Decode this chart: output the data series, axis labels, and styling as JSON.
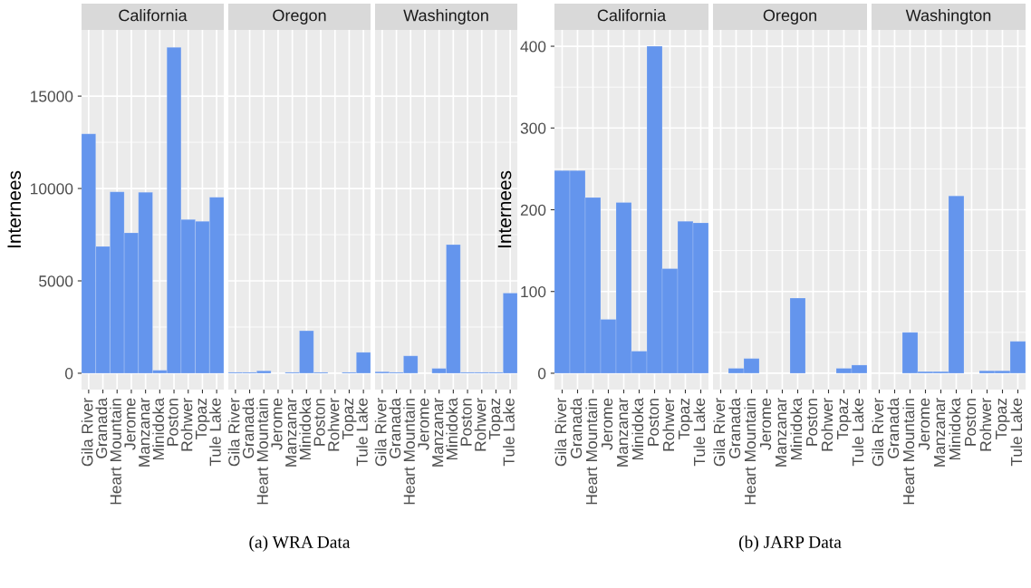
{
  "chart_data": [
    {
      "type": "bar",
      "title": "California",
      "ylabel": "Internees",
      "categories": [
        "Gila River",
        "Granada",
        "Heart Mountain",
        "Jerome",
        "Manzanar",
        "Minidoka",
        "Poston",
        "Rohwer",
        "Topaz",
        "Tule Lake"
      ],
      "values": [
        12960,
        6860,
        9820,
        7600,
        9800,
        160,
        17640,
        8320,
        8220,
        9530
      ],
      "color": "#6495ed",
      "ylim": [
        -885,
        18585
      ],
      "yticks": [
        0,
        5000,
        10000,
        15000
      ],
      "grid": true
    },
    {
      "type": "bar",
      "title": "Oregon",
      "categories": [
        "Gila River",
        "Granada",
        "Heart Mountain",
        "Jerome",
        "Manzanar",
        "Minidoka",
        "Poston",
        "Rohwer",
        "Topaz",
        "Tule Lake"
      ],
      "values": [
        50,
        50,
        130,
        null,
        50,
        2300,
        50,
        null,
        50,
        1130
      ],
      "color": "#6495ed",
      "ylim": [
        -885,
        18585
      ],
      "yticks": [
        0,
        5000,
        10000,
        15000
      ],
      "grid": true,
      "tick_labels": "x",
      "annotations": [
        "(a) WRA Data"
      ]
    },
    {
      "type": "bar",
      "title": "Washington",
      "categories": [
        "Gila River",
        "Granada",
        "Heart Mountain",
        "Jerome",
        "Manzanar",
        "Minidoka",
        "Poston",
        "Rohwer",
        "Topaz",
        "Tule Lake"
      ],
      "values": [
        80,
        50,
        940,
        null,
        260,
        6960,
        50,
        50,
        50,
        4340
      ],
      "color": "#6495ed",
      "ylim": [
        -885,
        18585
      ],
      "yticks": [
        0,
        5000,
        10000,
        15000
      ],
      "grid": true,
      "tick_labels": "x"
    },
    {
      "type": "bar",
      "title": "California",
      "ylabel": "Internees",
      "categories": [
        "Gila River",
        "Granada",
        "Heart Mountain",
        "Jerome",
        "Manzanar",
        "Minidoka",
        "Poston",
        "Rohwer",
        "Topaz",
        "Tule Lake"
      ],
      "values": [
        248,
        248,
        215,
        66,
        209,
        27,
        400,
        128,
        186,
        184
      ],
      "color": "#6495ed",
      "ylim": [
        -20,
        420
      ],
      "yticks": [
        0,
        100,
        200,
        300,
        400
      ],
      "grid": true
    },
    {
      "type": "bar",
      "title": "Oregon",
      "categories": [
        "Gila River",
        "Granada",
        "Heart Mountain",
        "Jerome",
        "Manzanar",
        "Minidoka",
        "Poston",
        "Rohwer",
        "Topaz",
        "Tule Lake"
      ],
      "values": [
        null,
        6,
        18,
        null,
        null,
        92,
        null,
        null,
        6,
        10
      ],
      "color": "#6495ed",
      "ylim": [
        -20,
        420
      ],
      "yticks": [
        0,
        100,
        200,
        300,
        400
      ],
      "grid": true,
      "tick_labels": "x",
      "annotations": [
        "(b) JARP Data"
      ]
    },
    {
      "type": "bar",
      "title": "Washington",
      "categories": [
        "Gila River",
        "Granada",
        "Heart Mountain",
        "Jerome",
        "Manzanar",
        "Minidoka",
        "Poston",
        "Rohwer",
        "Topaz",
        "Tule Lake"
      ],
      "values": [
        null,
        null,
        50,
        2,
        2,
        217,
        null,
        3,
        3,
        39
      ],
      "color": "#6495ed",
      "ylim": [
        -20,
        420
      ],
      "yticks": [
        0,
        100,
        200,
        300,
        400
      ],
      "grid": true,
      "tick_labels": "x"
    }
  ]
}
